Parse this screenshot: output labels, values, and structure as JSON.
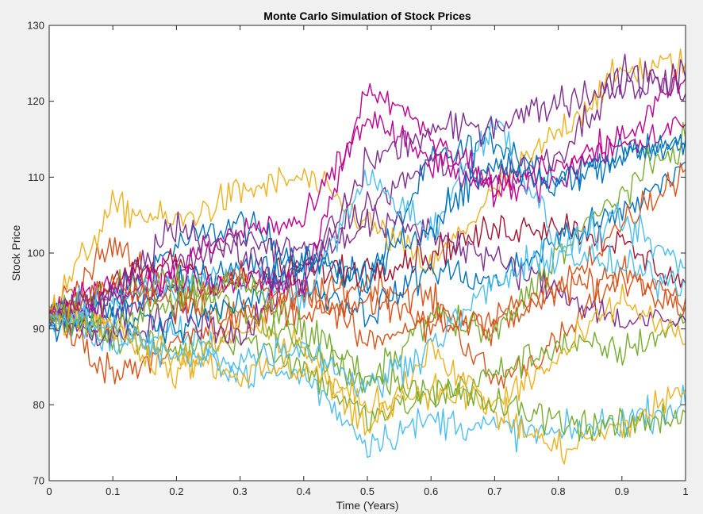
{
  "chart_data": {
    "type": "line",
    "title": "Monte Carlo Simulation of Stock Prices",
    "xlabel": "Time (Years)",
    "ylabel": "Stock Price",
    "xlim": [
      0,
      1
    ],
    "ylim": [
      70,
      130
    ],
    "xticks": [
      "0",
      "0.1",
      "0.2",
      "0.3",
      "0.4",
      "0.5",
      "0.6",
      "0.7",
      "0.8",
      "0.9",
      "1"
    ],
    "yticks": [
      "70",
      "80",
      "90",
      "100",
      "110",
      "120",
      "130"
    ],
    "grid": false,
    "legend": "none",
    "start_price": 92,
    "series": [
      {
        "color": "#0072BD",
        "x": [
          0,
          0.1,
          0.2,
          0.3,
          0.4,
          0.5,
          0.6,
          0.7,
          0.8,
          0.9,
          1
        ],
        "values": [
          92,
          94,
          101,
          104,
          99,
          96,
          112,
          115,
          110,
          113,
          114
        ]
      },
      {
        "color": "#D95319",
        "x": [
          0,
          0.1,
          0.2,
          0.3,
          0.4,
          0.5,
          0.6,
          0.7,
          0.8,
          0.9,
          1
        ],
        "values": [
          92,
          101,
          95,
          91,
          94,
          96,
          94,
          83,
          88,
          98,
          93
        ]
      },
      {
        "color": "#EDB120",
        "x": [
          0,
          0.1,
          0.2,
          0.3,
          0.4,
          0.5,
          0.6,
          0.7,
          0.8,
          0.9,
          1
        ],
        "values": [
          92,
          106,
          104,
          108,
          110,
          104,
          98,
          108,
          116,
          124,
          125
        ]
      },
      {
        "color": "#7E2F8E",
        "x": [
          0,
          0.1,
          0.2,
          0.3,
          0.4,
          0.5,
          0.6,
          0.7,
          0.8,
          0.9,
          1
        ],
        "values": [
          92,
          90,
          98,
          102,
          100,
          106,
          112,
          110,
          113,
          124,
          121
        ]
      },
      {
        "color": "#77AC30",
        "x": [
          0,
          0.1,
          0.2,
          0.3,
          0.4,
          0.5,
          0.6,
          0.7,
          0.8,
          0.9,
          1
        ],
        "values": [
          92,
          89,
          87,
          89,
          85,
          78,
          81,
          84,
          88,
          87,
          91
        ]
      },
      {
        "color": "#4DBEEE",
        "x": [
          0,
          0.1,
          0.2,
          0.3,
          0.4,
          0.5,
          0.6,
          0.7,
          0.8,
          0.9,
          1
        ],
        "values": [
          92,
          88,
          90,
          84,
          84,
          75,
          78,
          77,
          76,
          78,
          80
        ]
      },
      {
        "color": "#A2142F",
        "x": [
          0,
          0.1,
          0.2,
          0.3,
          0.4,
          0.5,
          0.6,
          0.7,
          0.8,
          0.9,
          1
        ],
        "values": [
          92,
          96,
          99,
          96,
          98,
          98,
          100,
          103,
          104,
          101,
          96
        ]
      },
      {
        "color": "#C00090",
        "x": [
          0,
          0.1,
          0.2,
          0.3,
          0.4,
          0.5,
          0.6,
          0.7,
          0.8,
          0.9,
          1
        ],
        "values": [
          92,
          96,
          98,
          103,
          104,
          118,
          112,
          108,
          110,
          115,
          123
        ]
      },
      {
        "color": "#0072BD",
        "x": [
          0,
          0.1,
          0.2,
          0.3,
          0.4,
          0.5,
          0.6,
          0.7,
          0.8,
          0.9,
          1
        ],
        "values": [
          91,
          93,
          95,
          99,
          96,
          92,
          98,
          96,
          102,
          105,
          112
        ]
      },
      {
        "color": "#D95319",
        "x": [
          0,
          0.1,
          0.2,
          0.3,
          0.4,
          0.5,
          0.6,
          0.7,
          0.8,
          0.9,
          1
        ],
        "values": [
          92,
          84,
          88,
          91,
          96,
          88,
          92,
          90,
          95,
          104,
          111
        ]
      },
      {
        "color": "#EDB120",
        "x": [
          0,
          0.1,
          0.2,
          0.3,
          0.4,
          0.5,
          0.6,
          0.7,
          0.8,
          0.9,
          1
        ],
        "values": [
          93,
          90,
          84,
          90,
          88,
          76,
          88,
          79,
          74,
          77,
          82
        ]
      },
      {
        "color": "#7E2F8E",
        "x": [
          0,
          0.1,
          0.2,
          0.3,
          0.4,
          0.5,
          0.6,
          0.7,
          0.8,
          0.9,
          1
        ],
        "values": [
          91,
          89,
          92,
          89,
          99,
          104,
          103,
          99,
          95,
          91,
          91
        ]
      },
      {
        "color": "#77AC30",
        "x": [
          0,
          0.1,
          0.2,
          0.3,
          0.4,
          0.5,
          0.6,
          0.7,
          0.8,
          0.9,
          1
        ],
        "values": [
          92,
          95,
          96,
          92,
          88,
          82,
          92,
          89,
          100,
          108,
          115
        ]
      },
      {
        "color": "#4DBEEE",
        "x": [
          0,
          0.1,
          0.2,
          0.3,
          0.4,
          0.5,
          0.6,
          0.7,
          0.8,
          0.9,
          1
        ],
        "values": [
          91,
          94,
          96,
          97,
          94,
          110,
          103,
          118,
          101,
          104,
          98
        ]
      },
      {
        "color": "#C00090",
        "x": [
          0,
          0.1,
          0.2,
          0.3,
          0.4,
          0.5,
          0.6,
          0.7,
          0.8,
          0.9,
          1
        ],
        "values": [
          92,
          94,
          97,
          96,
          96,
          122,
          116,
          108,
          112,
          114,
          117
        ]
      },
      {
        "color": "#0072BD",
        "x": [
          0,
          0.1,
          0.2,
          0.3,
          0.4,
          0.5,
          0.6,
          0.7,
          0.8,
          0.9,
          1
        ],
        "values": [
          90,
          92,
          90,
          94,
          99,
          97,
          104,
          112,
          109,
          113,
          115
        ]
      },
      {
        "color": "#D95319",
        "x": [
          0,
          0.1,
          0.2,
          0.3,
          0.4,
          0.5,
          0.6,
          0.7,
          0.8,
          0.9,
          1
        ],
        "values": [
          92,
          96,
          93,
          97,
          92,
          94,
          90,
          92,
          95,
          97,
          94
        ]
      },
      {
        "color": "#EDB120",
        "x": [
          0,
          0.1,
          0.2,
          0.3,
          0.4,
          0.5,
          0.6,
          0.7,
          0.8,
          0.9,
          1
        ],
        "values": [
          92,
          90,
          87,
          84,
          85,
          80,
          82,
          80,
          86,
          94,
          88
        ]
      },
      {
        "color": "#7E2F8E",
        "x": [
          0,
          0.1,
          0.2,
          0.3,
          0.4,
          0.5,
          0.6,
          0.7,
          0.8,
          0.9,
          1
        ],
        "values": [
          92,
          94,
          104,
          100,
          95,
          112,
          116,
          117,
          120,
          122,
          123
        ]
      },
      {
        "color": "#77AC30",
        "x": [
          0,
          0.1,
          0.2,
          0.3,
          0.4,
          0.5,
          0.6,
          0.7,
          0.8,
          0.9,
          1
        ],
        "values": [
          92,
          90,
          94,
          96,
          90,
          84,
          82,
          80,
          78,
          77,
          79
        ]
      },
      {
        "color": "#4DBEEE",
        "x": [
          0,
          0.1,
          0.2,
          0.3,
          0.4,
          0.5,
          0.6,
          0.7,
          0.8,
          0.9,
          1
        ],
        "values": [
          92,
          90,
          86,
          86,
          88,
          82,
          88,
          96,
          100,
          98,
          96
        ]
      }
    ]
  }
}
